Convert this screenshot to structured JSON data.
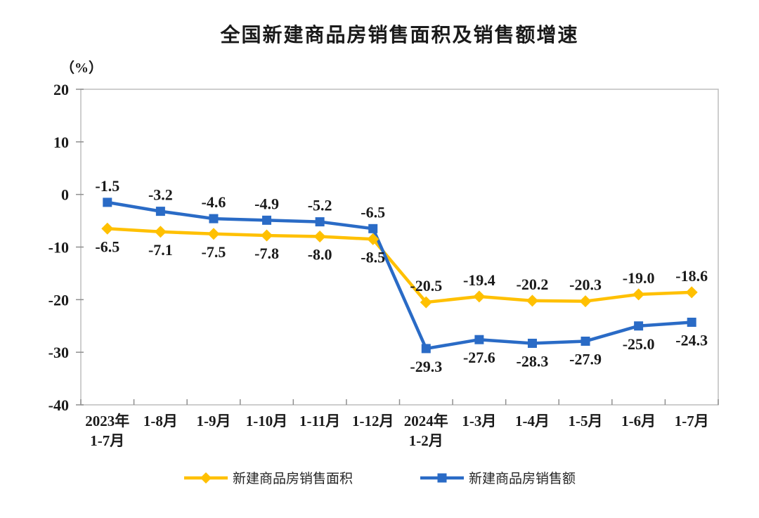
{
  "chart_data": {
    "type": "line",
    "title": "全国新建商品房销售面积及销售额增速",
    "unit_label": "（%）",
    "categories": [
      "2023年\n1-7月",
      "1-8月",
      "1-9月",
      "1-10月",
      "1-11月",
      "1-12月",
      "2024年\n1-2月",
      "1-3月",
      "1-4月",
      "1-5月",
      "1-6月",
      "1-7月"
    ],
    "series": [
      {
        "name": "新建商品房销售面积",
        "marker": "diamond",
        "color": "#FFC000",
        "values": [
          -6.5,
          -7.1,
          -7.5,
          -7.8,
          -8.0,
          -8.5,
          -20.5,
          -19.4,
          -20.2,
          -20.3,
          -19.0,
          -18.6
        ]
      },
      {
        "name": "新建商品房销售额",
        "marker": "square",
        "color": "#2A6BC6",
        "values": [
          -1.5,
          -3.2,
          -4.6,
          -4.9,
          -5.2,
          -6.5,
          -29.3,
          -27.6,
          -28.3,
          -27.9,
          -25.0,
          -24.3
        ]
      }
    ],
    "ylim": [
      -40,
      20
    ],
    "yticks": [
      20,
      10,
      0,
      -10,
      -20,
      -30,
      -40
    ],
    "grid": false,
    "legend_position": "bottom",
    "axis_color": "#bdbdbd",
    "tick_color": "#8f8f8f",
    "text_color": "#1a1a1a"
  }
}
